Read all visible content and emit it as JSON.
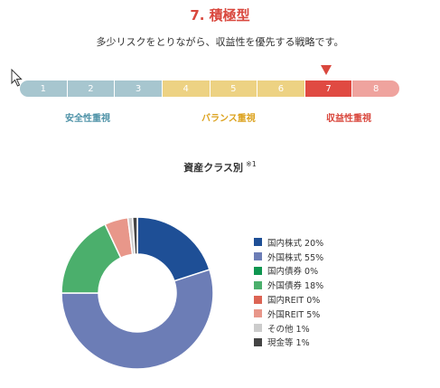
{
  "header": {
    "title": "7. 積極型",
    "subtitle": "多少リスクをとりながら、収益性を優先する戦略です。"
  },
  "colors": {
    "title": "#d9473d",
    "selected_marker": "#d9473d"
  },
  "risk_scale": {
    "selected": "7",
    "segments": [
      {
        "label": "1",
        "color": "#a7c6cf"
      },
      {
        "label": "2",
        "color": "#a7c6cf"
      },
      {
        "label": "3",
        "color": "#a7c6cf"
      },
      {
        "label": "4",
        "color": "#edd283"
      },
      {
        "label": "5",
        "color": "#edd283"
      },
      {
        "label": "6",
        "color": "#edd283"
      },
      {
        "label": "7",
        "color": "#e04a42"
      },
      {
        "label": "8",
        "color": "#efa39e"
      }
    ],
    "categories": [
      {
        "label": "安全性重視",
        "color": "#4f93a8"
      },
      {
        "label": "バランス重視",
        "color": "#dca21e"
      },
      {
        "label": "収益性重視",
        "color": "#d9473d"
      }
    ]
  },
  "chart": {
    "title": "資産クラス別",
    "note": "※1"
  },
  "chart_data": {
    "type": "pie",
    "categories": [
      "国内株式",
      "外国株式",
      "国内債券",
      "外国債券",
      "国内REIT",
      "外国REIT",
      "その他",
      "現金等"
    ],
    "values": [
      20,
      55,
      0,
      18,
      0,
      5,
      1,
      1
    ],
    "labels": [
      "国内株式 20%",
      "外国株式 55%",
      "国内債券 0%",
      "外国債券 18%",
      "国内REIT 0%",
      "外国REIT 5%",
      "その他 1%",
      "現金等 1%"
    ],
    "colors": [
      "#1e4f96",
      "#6c7db6",
      "#0e9650",
      "#4baf6c",
      "#dc6454",
      "#e8978a",
      "#cccccc",
      "#444444"
    ],
    "legend": "right",
    "donut": true
  }
}
